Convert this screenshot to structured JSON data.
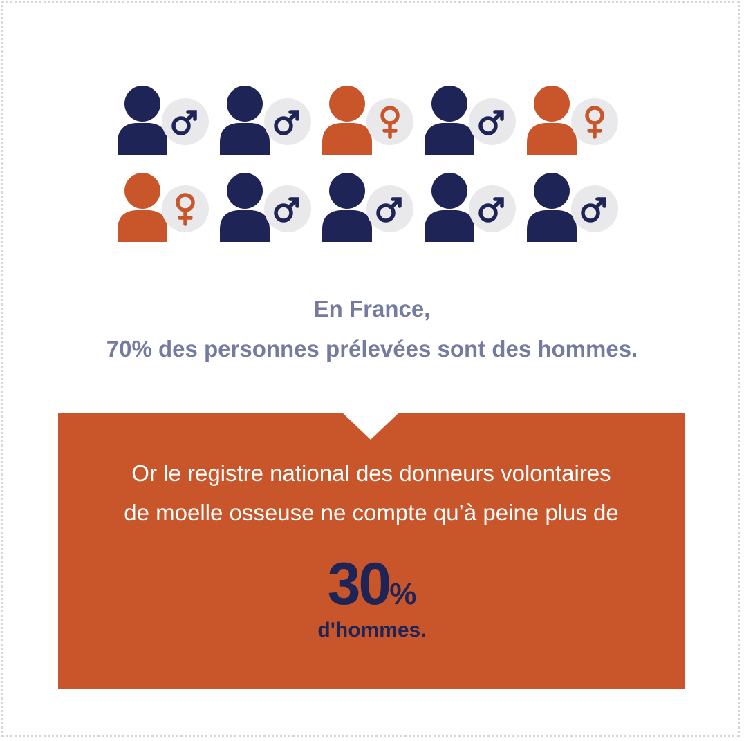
{
  "colors": {
    "male": "#1f2456",
    "female": "#c8562a",
    "badge": "#e9e9ec",
    "headline": "#747aa0",
    "callout_bg": "#c8562a",
    "callout_text": "#ffffff",
    "highlight_text": "#1f2456"
  },
  "people": [
    {
      "gender": "male",
      "icon": "male-symbol-icon"
    },
    {
      "gender": "male",
      "icon": "male-symbol-icon"
    },
    {
      "gender": "female",
      "icon": "female-symbol-icon"
    },
    {
      "gender": "male",
      "icon": "male-symbol-icon"
    },
    {
      "gender": "female",
      "icon": "female-symbol-icon"
    },
    {
      "gender": "female",
      "icon": "female-symbol-icon"
    },
    {
      "gender": "male",
      "icon": "male-symbol-icon"
    },
    {
      "gender": "male",
      "icon": "male-symbol-icon"
    },
    {
      "gender": "male",
      "icon": "male-symbol-icon"
    },
    {
      "gender": "male",
      "icon": "male-symbol-icon"
    }
  ],
  "headline": {
    "line1": "En France,",
    "line2": "70% des personnes prélevées sont des hommes."
  },
  "callout": {
    "line1": "Or le registre national des donneurs volontaires",
    "line2": "de moelle osseuse ne compte qu’à peine plus de",
    "number": "30",
    "percent_sign": "%",
    "sub_label": "d'hommes."
  }
}
